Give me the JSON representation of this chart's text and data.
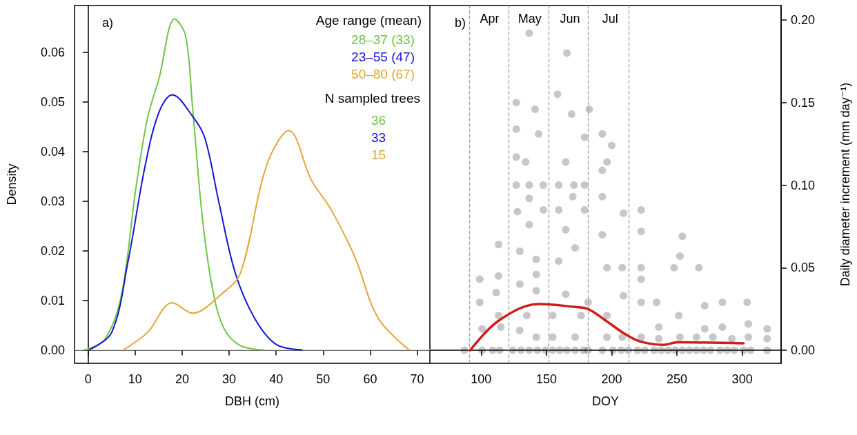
{
  "chart_data": [
    {
      "type": "line",
      "title": "a)",
      "xlabel": "DBH (cm)",
      "ylabel": "Density",
      "legend_title": "Age range (mean)",
      "legend": "top right",
      "annotations": [
        "N sampled trees",
        "36",
        "33",
        "15"
      ],
      "xlim": [
        -2.9,
        72.7
      ],
      "xticks": [
        0,
        10,
        20,
        30,
        40,
        50,
        60,
        70
      ],
      "ylim": [
        -0.0027,
        0.0694
      ],
      "yticks": [
        {
          "value": 0,
          "label": "0.00"
        },
        {
          "value": 0.01,
          "label": "0.01"
        },
        {
          "value": 0.02,
          "label": "0.02"
        },
        {
          "value": 0.03,
          "label": "0.03"
        },
        {
          "value": 0.04,
          "label": "0.04"
        },
        {
          "value": 0.05,
          "label": "0.05"
        },
        {
          "value": 0.06,
          "label": "0.06"
        }
      ],
      "ref_lines": [
        {
          "axis": "y",
          "value": 0,
          "label": null,
          "color": "#e0e0e0"
        }
      ],
      "series": [
        {
          "name": "28–37 (33)",
          "color": "#6cc644",
          "x": [
            -0.8,
            3.5,
            7.0,
            10.1,
            12.6,
            15.1,
            18.4,
            20.7,
            22.2,
            24.2,
            26.3,
            28.8,
            32.3,
            37.4
          ],
          "values": [
            0,
            0.0021,
            0.0107,
            0.0322,
            0.0466,
            0.0548,
            0.0667,
            0.0634,
            0.049,
            0.0275,
            0.0131,
            0.0045,
            0.0009,
            0
          ]
        },
        {
          "name": "23–55 (47)",
          "color": "#1414d2",
          "x": [
            0.2,
            5.0,
            8.5,
            12.1,
            15.1,
            17.9,
            22.2,
            24.8,
            27.8,
            31.3,
            35.4,
            40.0,
            45.5
          ],
          "values": [
            0,
            0.0035,
            0.0179,
            0.037,
            0.048,
            0.0514,
            0.0471,
            0.0428,
            0.0298,
            0.0155,
            0.0064,
            0.0011,
            0
          ]
        },
        {
          "name": "50–80 (67)",
          "color": "#e2a634",
          "x": [
            7.5,
            12.6,
            17.9,
            22.2,
            28.3,
            32.4,
            37.9,
            42.7,
            47.5,
            51.6,
            56.7,
            61.7,
            68.3
          ],
          "values": [
            0,
            0.0035,
            0.0095,
            0.0074,
            0.0112,
            0.0155,
            0.037,
            0.0442,
            0.0342,
            0.0284,
            0.0188,
            0.0064,
            0
          ]
        }
      ]
    },
    {
      "type": "scatter",
      "title": "b)",
      "xlabel": "DOY",
      "y2label": "Daily diameter increment (mm day⁻¹)",
      "legend": false,
      "xlim": [
        60.7,
        329.8
      ],
      "xticks": [
        100,
        150,
        200,
        250,
        300
      ],
      "y2lim": [
        -0.0079,
        0.2088
      ],
      "y2ticks": [
        {
          "value": 0,
          "label": "0.00"
        },
        {
          "value": 0.05,
          "label": "0.05"
        },
        {
          "value": 0.1,
          "label": "0.10"
        },
        {
          "value": 0.15,
          "label": "0.15"
        },
        {
          "value": 0.2,
          "label": "0.20"
        }
      ],
      "ref_lines": [
        {
          "axis": "x",
          "value": 91,
          "label": null,
          "color": "#a0a0a0",
          "line_style": "dashed"
        },
        {
          "axis": "x",
          "value": 121,
          "label": null,
          "color": "#a0a0a0",
          "line_style": "dashed"
        },
        {
          "axis": "x",
          "value": 152,
          "label": null,
          "color": "#a0a0a0",
          "line_style": "dashed"
        },
        {
          "axis": "x",
          "value": 182,
          "label": null,
          "color": "#a0a0a0",
          "line_style": "dashed"
        },
        {
          "axis": "x",
          "value": 213,
          "label": null,
          "color": "#a0a0a0",
          "line_style": "dashed"
        }
      ],
      "annotations": [
        "Apr",
        "May",
        "Jun",
        "Jul"
      ],
      "series": [
        {
          "axis": "y2",
          "color": "#000000",
          "marker": "circle",
          "x": [
            87.1,
            100.7,
            108.8,
            114.2,
            124.2,
            130.5,
            136.8,
            143.1,
            149.4,
            154.8,
            160.3,
            165.7,
            172,
            178.3,
            181.9,
            192.8,
            200.9,
            207.2,
            212.6,
            219.8,
            225.3,
            232.5,
            237.9,
            243.3,
            248.7,
            254.1,
            259.6,
            265,
            270.4,
            275.8,
            283,
            288.4,
            293.9,
            301.1,
            306.5,
            319.1,
            136.8,
            165.7,
            126.9,
            158.5,
            126.9,
            141.3,
            169.3,
            182.8,
            144,
            179.2,
            192.8,
            126.9,
            134.1,
            164.8,
            192.8,
            196.4,
            200,
            126.9,
            136.8,
            147.6,
            159.4,
            171.1,
            179.2,
            136.8,
            170.2,
            192.8,
            179.2,
            127.8,
            147.6,
            159.4,
            222.6,
            209,
            136.8,
            164.8,
            192.8,
            222.6,
            129.6,
            172,
            142.2,
            159.4,
            196.4,
            222.6,
            254.1,
            252.3,
            247.8,
            266.8,
            142.2,
            129.6,
            142.2,
            164.8,
            181.9,
            98.9,
            113.3,
            135,
            154.8,
            176.5,
            196.4,
            222.6,
            234.3,
            251.4,
            271.3,
            284.8,
            303.8,
            319.1,
            100.7,
            115.1,
            129.6,
            142.2,
            154.8,
            172,
            196.4,
            208.1,
            222.6,
            236.1,
            252.3,
            265,
            277.6,
            292.1,
            304.7,
            319.1,
            304.7,
            284.8,
            271.3,
            236.1,
            111.5,
            113.3,
            98.9,
            113.3,
            222.6,
            208.1,
            209
          ],
          "values": [
            0,
            0,
            0,
            0,
            0,
            0,
            0,
            0,
            0,
            0,
            0,
            0,
            0,
            0,
            0,
            0,
            0,
            0,
            0,
            0,
            0,
            0,
            0,
            0,
            0,
            0,
            0,
            0,
            0,
            0,
            0,
            0,
            0,
            0,
            0,
            0,
            0.192,
            0.18,
            0.15,
            0.155,
            0.134,
            0.146,
            0.143,
            0.146,
            0.131,
            0.129,
            0.131,
            0.117,
            0.114,
            0.114,
            0.109,
            0.114,
            0.124,
            0.1,
            0.1,
            0.1,
            0.1,
            0.1,
            0.1,
            0.092,
            0.093,
            0.093,
            0.085,
            0.084,
            0.085,
            0.085,
            0.085,
            0.083,
            0.076,
            0.073,
            0.07,
            0.072,
            0.06,
            0.062,
            0.055,
            0.054,
            0.05,
            0.05,
            0.069,
            0.057,
            0.05,
            0.05,
            0.046,
            0.04,
            0.036,
            0.034,
            0.029,
            0.029,
            0.021,
            0.021,
            0.021,
            0.021,
            0.021,
            0.029,
            0.029,
            0.021,
            0.027,
            0.029,
            0.029,
            0.013,
            0.013,
            0.014,
            0.012,
            0.008,
            0.008,
            0.008,
            0.008,
            0.008,
            0.008,
            0.007,
            0.008,
            0.008,
            0.008,
            0.007,
            0.008,
            0.007,
            0.016,
            0.014,
            0.013,
            0.014,
            0.035,
            0.045,
            0.043,
            0.064,
            0.043,
            0.05,
            0.033
          ]
        },
        {
          "type": "line",
          "axis": "y2",
          "color": "#d01c1c",
          "marker": "none",
          "x": [
            91.6,
            113,
            144,
            171,
            181.7,
            196,
            208.9,
            221.5,
            239.8,
            250.5,
            301
          ],
          "values": [
            0,
            0.0177,
            0.028,
            0.0263,
            0.025,
            0.0177,
            0.0105,
            0.0054,
            0.0033,
            0.0048,
            0.0042
          ]
        }
      ]
    }
  ]
}
